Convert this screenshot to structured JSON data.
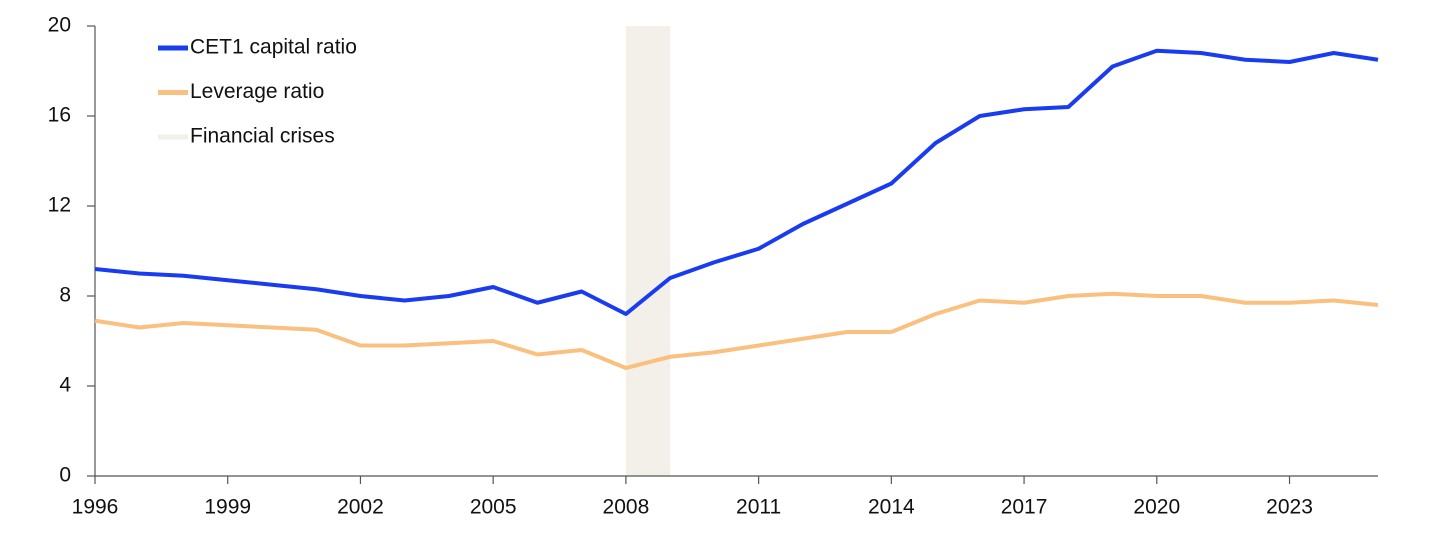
{
  "chart_data": {
    "type": "line",
    "x": [
      1996,
      1997,
      1998,
      1999,
      2000,
      2001,
      2002,
      2003,
      2004,
      2005,
      2006,
      2007,
      2008,
      2009,
      2010,
      2011,
      2012,
      2013,
      2014,
      2015,
      2016,
      2017,
      2018,
      2019,
      2020,
      2021,
      2022,
      2023,
      2024,
      2025
    ],
    "series": [
      {
        "name": "CET1 capital ratio",
        "color": "#1a3cf0",
        "values": [
          9.2,
          9.0,
          8.9,
          8.7,
          8.5,
          8.3,
          8.0,
          7.8,
          8.0,
          8.4,
          7.7,
          8.2,
          7.2,
          8.8,
          9.5,
          10.1,
          11.2,
          12.1,
          13.0,
          14.8,
          16.0,
          16.3,
          16.4,
          18.2,
          18.9,
          18.8,
          18.5,
          18.4,
          18.8,
          18.5
        ]
      },
      {
        "name": "Leverage ratio",
        "color": "#f9c07f",
        "values": [
          6.9,
          6.6,
          6.8,
          6.7,
          6.6,
          6.5,
          5.8,
          5.8,
          5.9,
          6.0,
          5.4,
          5.6,
          4.8,
          5.3,
          5.5,
          5.8,
          6.1,
          6.4,
          6.4,
          7.2,
          7.8,
          7.7,
          8.0,
          8.1,
          8.0,
          8.0,
          7.7,
          7.7,
          7.8,
          7.6
        ]
      }
    ],
    "shaded_periods": [
      {
        "name": "Financial crises",
        "start": 2008,
        "end": 2009,
        "color": "#f3efe9"
      }
    ],
    "xlim": [
      1996,
      2025
    ],
    "xticks": [
      1996,
      1999,
      2002,
      2005,
      2008,
      2011,
      2014,
      2017,
      2020,
      2023
    ],
    "ylim": [
      0,
      20
    ],
    "yticks": [
      0,
      4,
      8,
      12,
      16,
      20
    ],
    "grid": false,
    "legend": "upper left"
  }
}
